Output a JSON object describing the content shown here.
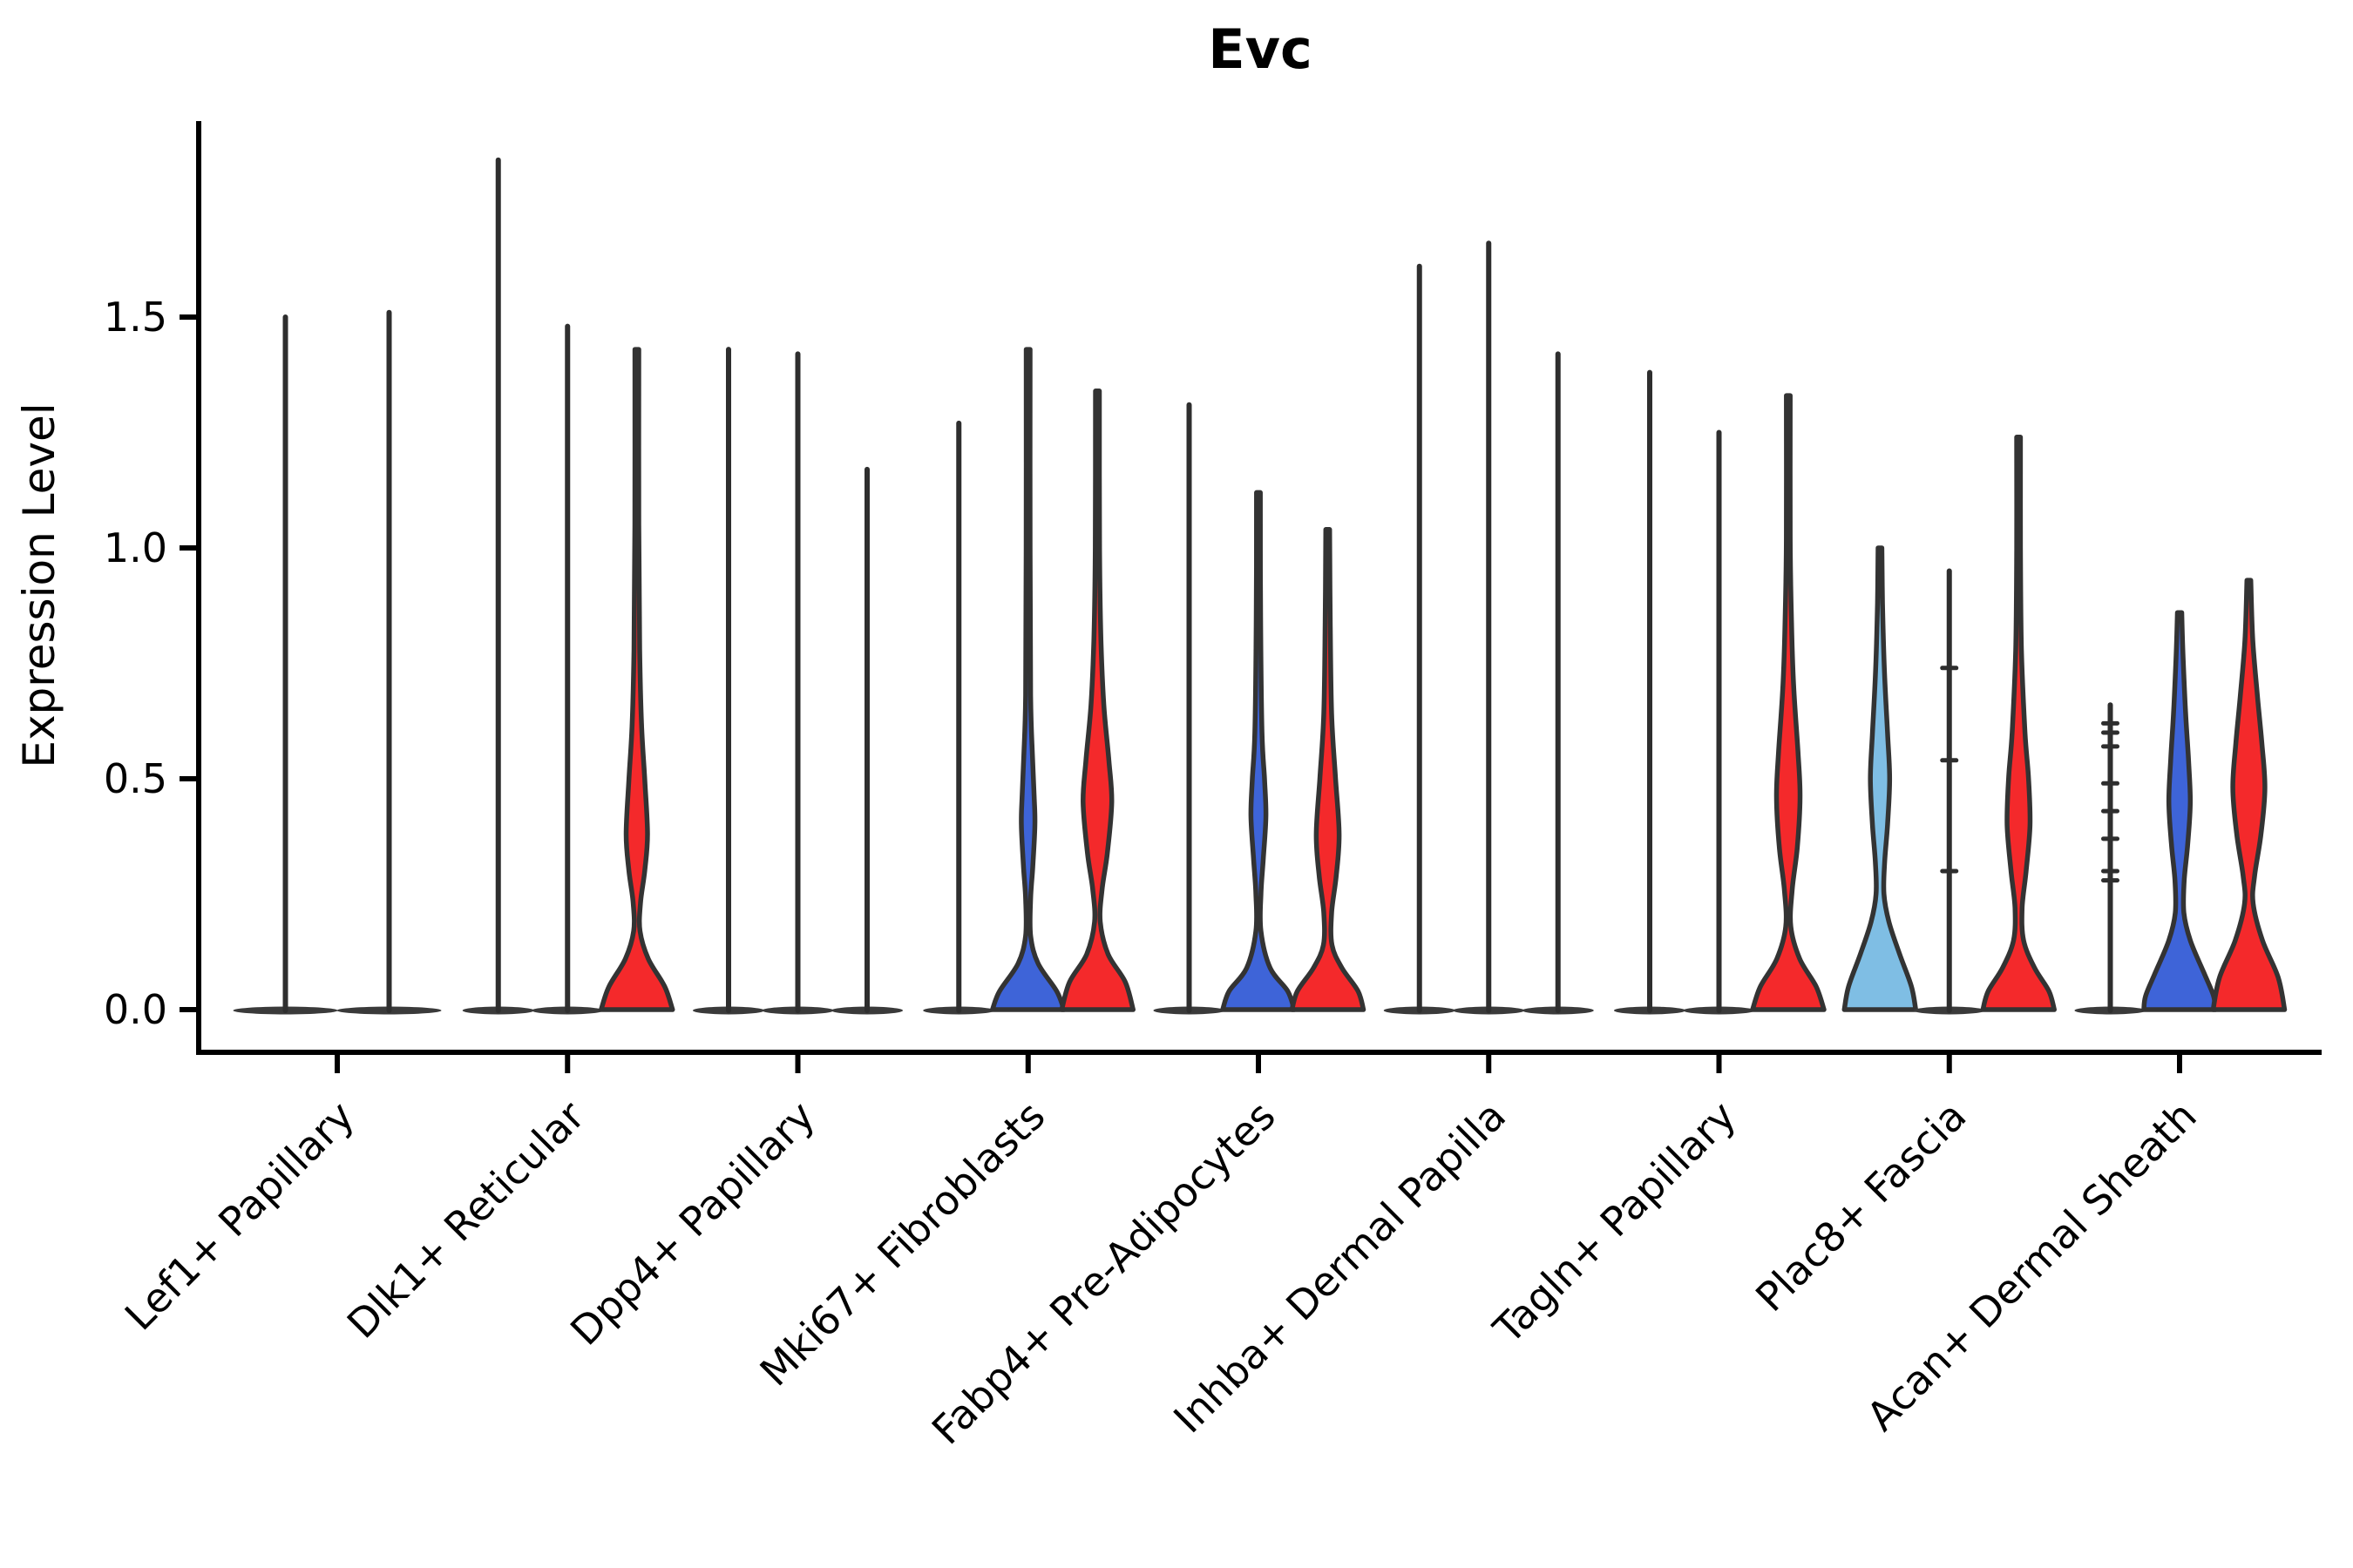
{
  "chart_data": {
    "type": "violin",
    "title": "Evc",
    "ylabel": "Expression Level",
    "xlabel": "",
    "ylim": [
      -0.09,
      1.93
    ],
    "yticks": [
      0.0,
      0.5,
      1.0,
      1.5
    ],
    "ytick_labels": [
      "0.0",
      "0.5",
      "1.0",
      "1.5"
    ],
    "grid": false,
    "legend": false,
    "palette": {
      "red": "#F4292B",
      "blue": "#3E64D8",
      "lightblue": "#7FBEE4",
      "outline": "#333333",
      "spike": "#2E2E2E",
      "base_bar": "#3A3A3A",
      "axis": "#000000",
      "text": "#000000"
    },
    "categories": [
      "Lef1+ Papillary",
      "Dlk1+ Reticular",
      "Dpp4+ Papillary",
      "Mki67+ Fibroblasts",
      "Fabp4+ Pre-Adipocytes",
      "Inhba+ Dermal Papilla",
      "Tagln+ Papillary",
      "Plac8+ Fascia",
      "Acan+ Dermal Sheath"
    ],
    "groups": [
      {
        "label": "Lef1+ Papillary",
        "violins": [
          {
            "fill": "none",
            "tip": 1.5
          },
          {
            "fill": "none",
            "tip": 1.51
          }
        ]
      },
      {
        "label": "Dlk1+ Reticular",
        "violins": [
          {
            "fill": "none",
            "tip": 1.84
          },
          {
            "fill": "none",
            "tip": 1.48
          },
          {
            "fill": "red",
            "tip": 1.43,
            "profile": [
              [
                1.43,
                0.04
              ],
              [
                1.05,
                0.05
              ],
              [
                0.78,
                0.08
              ],
              [
                0.62,
                0.13
              ],
              [
                0.5,
                0.22
              ],
              [
                0.38,
                0.3
              ],
              [
                0.3,
                0.22
              ],
              [
                0.23,
                0.1
              ],
              [
                0.17,
                0.09
              ],
              [
                0.11,
                0.32
              ],
              [
                0.05,
                0.78
              ],
              [
                0.0,
                1.0
              ]
            ]
          }
        ]
      },
      {
        "label": "Dpp4+ Papillary",
        "violins": [
          {
            "fill": "none",
            "tip": 1.43
          },
          {
            "fill": "none",
            "tip": 1.42
          },
          {
            "fill": "none",
            "tip": 1.17
          }
        ]
      },
      {
        "label": "Mki67+ Fibroblasts",
        "violins": [
          {
            "fill": "none",
            "tip": 1.27
          },
          {
            "fill": "blue",
            "tip": 1.43,
            "profile": [
              [
                1.43,
                0.04
              ],
              [
                1.0,
                0.05
              ],
              [
                0.68,
                0.07
              ],
              [
                0.55,
                0.12
              ],
              [
                0.46,
                0.17
              ],
              [
                0.4,
                0.19
              ],
              [
                0.31,
                0.13
              ],
              [
                0.24,
                0.07
              ],
              [
                0.16,
                0.07
              ],
              [
                0.1,
                0.28
              ],
              [
                0.04,
                0.8
              ],
              [
                0.0,
                1.0
              ]
            ]
          },
          {
            "fill": "red",
            "tip": 1.34,
            "profile": [
              [
                1.34,
                0.04
              ],
              [
                1.0,
                0.06
              ],
              [
                0.8,
                0.1
              ],
              [
                0.66,
                0.18
              ],
              [
                0.54,
                0.32
              ],
              [
                0.45,
                0.4
              ],
              [
                0.34,
                0.28
              ],
              [
                0.26,
                0.13
              ],
              [
                0.19,
                0.08
              ],
              [
                0.12,
                0.3
              ],
              [
                0.06,
                0.78
              ],
              [
                0.0,
                1.0
              ]
            ]
          }
        ]
      },
      {
        "label": "Fabp4+ Pre-Adipocytes",
        "violins": [
          {
            "fill": "none",
            "tip": 1.31
          },
          {
            "fill": "blue",
            "tip": 1.12,
            "profile": [
              [
                1.12,
                0.05
              ],
              [
                0.85,
                0.06
              ],
              [
                0.6,
                0.1
              ],
              [
                0.5,
                0.17
              ],
              [
                0.42,
                0.21
              ],
              [
                0.33,
                0.14
              ],
              [
                0.25,
                0.07
              ],
              [
                0.17,
                0.07
              ],
              [
                0.09,
                0.33
              ],
              [
                0.04,
                0.82
              ],
              [
                0.0,
                1.0
              ]
            ]
          },
          {
            "fill": "red",
            "tip": 1.04,
            "profile": [
              [
                1.04,
                0.05
              ],
              [
                0.84,
                0.07
              ],
              [
                0.64,
                0.11
              ],
              [
                0.5,
                0.22
              ],
              [
                0.38,
                0.32
              ],
              [
                0.29,
                0.24
              ],
              [
                0.21,
                0.11
              ],
              [
                0.14,
                0.12
              ],
              [
                0.09,
                0.4
              ],
              [
                0.04,
                0.85
              ],
              [
                0.0,
                1.0
              ]
            ]
          }
        ]
      },
      {
        "label": "Inhba+ Dermal Papilla",
        "violins": [
          {
            "fill": "none",
            "tip": 1.61
          },
          {
            "fill": "none",
            "tip": 1.66
          },
          {
            "fill": "none",
            "tip": 1.42
          }
        ]
      },
      {
        "label": "Tagln+ Papillary",
        "violins": [
          {
            "fill": "none",
            "tip": 1.38
          },
          {
            "fill": "none",
            "tip": 1.25
          },
          {
            "fill": "red",
            "tip": 1.33,
            "profile": [
              [
                1.33,
                0.04
              ],
              [
                1.02,
                0.05
              ],
              [
                0.84,
                0.09
              ],
              [
                0.7,
                0.15
              ],
              [
                0.56,
                0.27
              ],
              [
                0.46,
                0.33
              ],
              [
                0.35,
                0.25
              ],
              [
                0.26,
                0.11
              ],
              [
                0.18,
                0.07
              ],
              [
                0.11,
                0.32
              ],
              [
                0.05,
                0.78
              ],
              [
                0.0,
                1.0
              ]
            ]
          }
        ]
      },
      {
        "label": "Plac8+ Fascia",
        "violins": [
          {
            "fill": "lightblue",
            "tip": 1.0,
            "profile": [
              [
                1.0,
                0.05
              ],
              [
                0.88,
                0.07
              ],
              [
                0.74,
                0.12
              ],
              [
                0.6,
                0.21
              ],
              [
                0.5,
                0.27
              ],
              [
                0.4,
                0.21
              ],
              [
                0.32,
                0.13
              ],
              [
                0.25,
                0.11
              ],
              [
                0.19,
                0.25
              ],
              [
                0.12,
                0.55
              ],
              [
                0.05,
                0.88
              ],
              [
                0.0,
                1.0
              ]
            ]
          },
          {
            "fill": "none",
            "tip": 0.95,
            "dashes": [
              0.74,
              0.54,
              0.3
            ]
          },
          {
            "fill": "red",
            "tip": 1.24,
            "profile": [
              [
                1.24,
                0.04
              ],
              [
                1.0,
                0.05
              ],
              [
                0.78,
                0.08
              ],
              [
                0.6,
                0.18
              ],
              [
                0.5,
                0.28
              ],
              [
                0.4,
                0.32
              ],
              [
                0.3,
                0.21
              ],
              [
                0.22,
                0.1
              ],
              [
                0.15,
                0.14
              ],
              [
                0.09,
                0.45
              ],
              [
                0.04,
                0.85
              ],
              [
                0.0,
                1.0
              ]
            ]
          }
        ]
      },
      {
        "label": "Acan+ Dermal Sheath",
        "violins": [
          {
            "fill": "none",
            "tip": 0.66,
            "dashes": [
              0.62,
              0.6,
              0.57,
              0.49,
              0.43,
              0.37,
              0.3,
              0.28
            ]
          },
          {
            "fill": "blue",
            "tip": 0.86,
            "profile": [
              [
                0.86,
                0.06
              ],
              [
                0.76,
                0.1
              ],
              [
                0.64,
                0.17
              ],
              [
                0.54,
                0.25
              ],
              [
                0.45,
                0.3
              ],
              [
                0.36,
                0.23
              ],
              [
                0.28,
                0.13
              ],
              [
                0.21,
                0.12
              ],
              [
                0.15,
                0.3
              ],
              [
                0.08,
                0.68
              ],
              [
                0.03,
                0.95
              ],
              [
                0.0,
                1.0
              ]
            ]
          },
          {
            "fill": "red",
            "tip": 0.93,
            "profile": [
              [
                0.93,
                0.05
              ],
              [
                0.8,
                0.11
              ],
              [
                0.68,
                0.24
              ],
              [
                0.58,
                0.36
              ],
              [
                0.48,
                0.45
              ],
              [
                0.38,
                0.34
              ],
              [
                0.29,
                0.16
              ],
              [
                0.23,
                0.12
              ],
              [
                0.15,
                0.38
              ],
              [
                0.07,
                0.82
              ],
              [
                0.0,
                1.0
              ]
            ]
          }
        ]
      }
    ]
  }
}
